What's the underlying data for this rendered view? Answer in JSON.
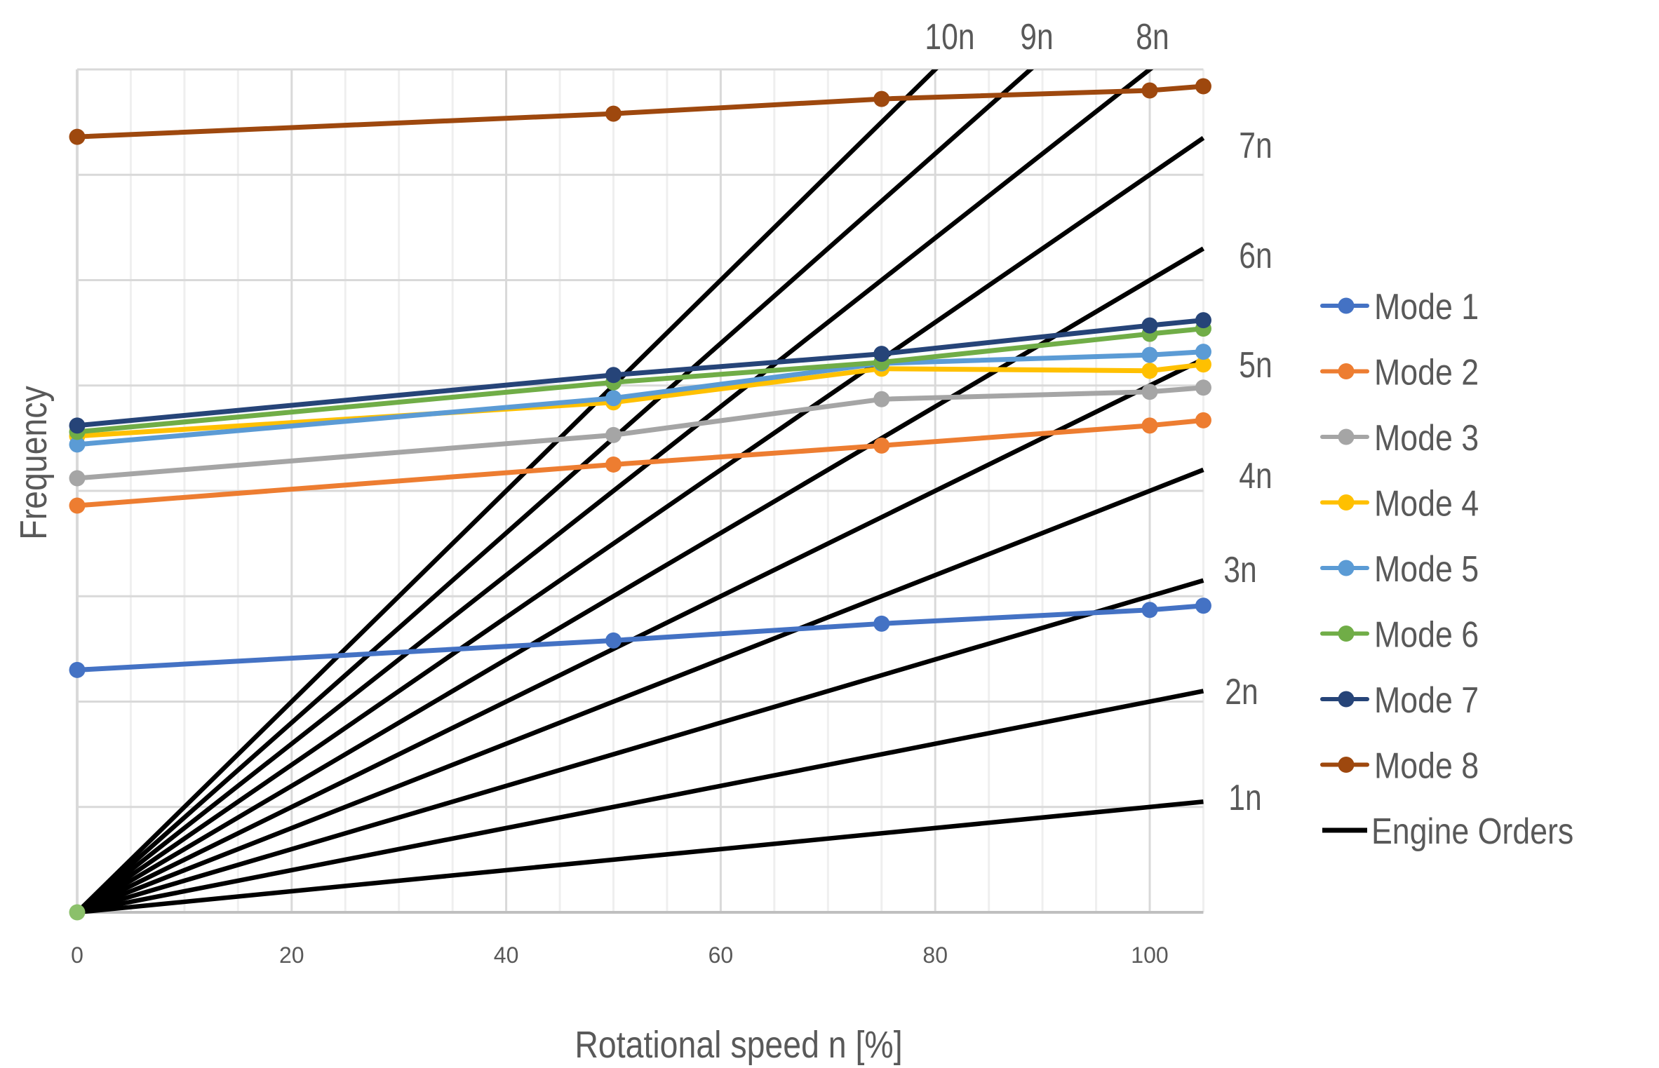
{
  "chart_data": {
    "type": "line",
    "title": "",
    "xlabel": "Rotational speed n [%]",
    "ylabel": "Frequency",
    "xlim": [
      0,
      105
    ],
    "ylim": [
      0,
      8
    ],
    "x_ticks": [
      0,
      20,
      40,
      60,
      80,
      100
    ],
    "x_tick_labels": [
      "0",
      "20",
      "40",
      "60",
      "80",
      "100"
    ],
    "y_tick_labels_shown": false,
    "grid": {
      "major_x_step": 20,
      "minor_x_step": 5,
      "major_y_step": 1
    },
    "legend_position": "right",
    "x": [
      0,
      50,
      75,
      100,
      105
    ],
    "series": [
      {
        "name": "Mode 1",
        "color": "#4472C4",
        "values": [
          2.3,
          2.58,
          2.74,
          2.87,
          2.91
        ]
      },
      {
        "name": "Mode 2",
        "color": "#ED7D31",
        "values": [
          3.86,
          4.25,
          4.43,
          4.62,
          4.67
        ]
      },
      {
        "name": "Mode 3",
        "color": "#A5A5A5",
        "values": [
          4.12,
          4.53,
          4.87,
          4.94,
          4.98
        ]
      },
      {
        "name": "Mode 4",
        "color": "#FFC000",
        "values": [
          4.52,
          4.84,
          5.16,
          5.14,
          5.2
        ]
      },
      {
        "name": "Mode 5",
        "color": "#5B9BD5",
        "values": [
          4.44,
          4.88,
          5.21,
          5.29,
          5.32
        ]
      },
      {
        "name": "Mode 6",
        "color": "#70AD47",
        "values": [
          4.56,
          5.03,
          5.22,
          5.49,
          5.54
        ]
      },
      {
        "name": "Mode 7",
        "color": "#264478",
        "values": [
          4.62,
          5.1,
          5.3,
          5.57,
          5.62
        ]
      },
      {
        "name": "Mode 8",
        "color": "#9E480E",
        "values": [
          7.36,
          7.58,
          7.72,
          7.8,
          7.84
        ]
      }
    ],
    "engine_orders": {
      "name": "Engine Orders",
      "color": "#000000",
      "formula": "frequency = order * n / 100",
      "orders": [
        1,
        2,
        3,
        4,
        5,
        6,
        7,
        8,
        9,
        10
      ],
      "labels": [
        "1n",
        "2n",
        "3n",
        "4n",
        "5n",
        "6n",
        "7n",
        "8n",
        "9n",
        "10n"
      ]
    },
    "origin_marker": {
      "x": 0,
      "y": 0,
      "color": "#8BC06A"
    }
  },
  "legend": {
    "items": [
      {
        "label": "Mode 1",
        "color": "#4472C4",
        "marker": true
      },
      {
        "label": "Mode 2",
        "color": "#ED7D31",
        "marker": true
      },
      {
        "label": "Mode 3",
        "color": "#A5A5A5",
        "marker": true
      },
      {
        "label": "Mode 4",
        "color": "#FFC000",
        "marker": true
      },
      {
        "label": "Mode 5",
        "color": "#5B9BD5",
        "marker": true
      },
      {
        "label": "Mode 6",
        "color": "#70AD47",
        "marker": true
      },
      {
        "label": "Mode 7",
        "color": "#264478",
        "marker": true
      },
      {
        "label": "Mode 8",
        "color": "#9E480E",
        "marker": true
      },
      {
        "label": "Engine Orders",
        "color": "#000000",
        "marker": false
      }
    ]
  },
  "colors": {
    "text": "#595959",
    "grid_major": "#D9D9D9",
    "grid_minor": "#EFEFEF",
    "axis": "#BFBFBF"
  }
}
